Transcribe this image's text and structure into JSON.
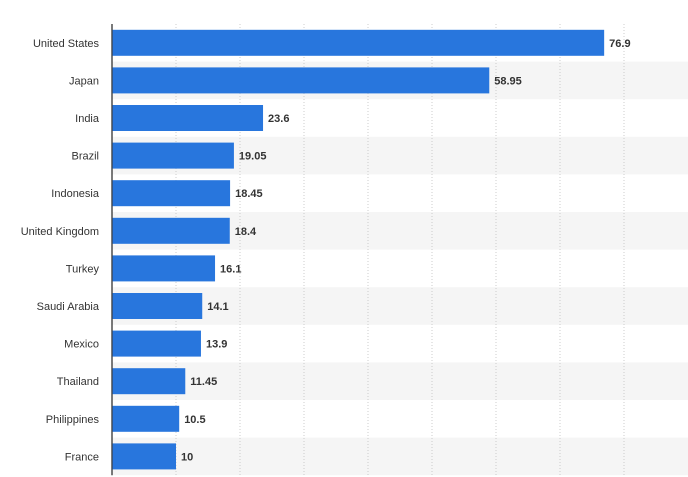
{
  "chart_data": {
    "type": "bar",
    "orientation": "horizontal",
    "categories": [
      "United States",
      "Japan",
      "India",
      "Brazil",
      "Indonesia",
      "United Kingdom",
      "Turkey",
      "Saudi Arabia",
      "Mexico",
      "Thailand",
      "Philippines",
      "France"
    ],
    "values": [
      76.9,
      58.95,
      23.6,
      19.05,
      18.45,
      18.4,
      16.1,
      14.1,
      13.9,
      11.45,
      10.5,
      10
    ],
    "value_labels": [
      "76.9",
      "58.95",
      "23.6",
      "19.05",
      "18.45",
      "18.4",
      "16.1",
      "14.1",
      "13.9",
      "11.45",
      "10.5",
      "10"
    ],
    "xlim": [
      0,
      90
    ],
    "x_gridlines": [
      0,
      10,
      20,
      30,
      40,
      50,
      60,
      70,
      80
    ],
    "grid": true,
    "legend": "none",
    "title": "",
    "xlabel": "",
    "ylabel": ""
  },
  "colors": {
    "bar": "#2876dd",
    "band": "#f5f5f5",
    "grid": "#cccccc",
    "axis": "#222222",
    "text": "#333333"
  }
}
